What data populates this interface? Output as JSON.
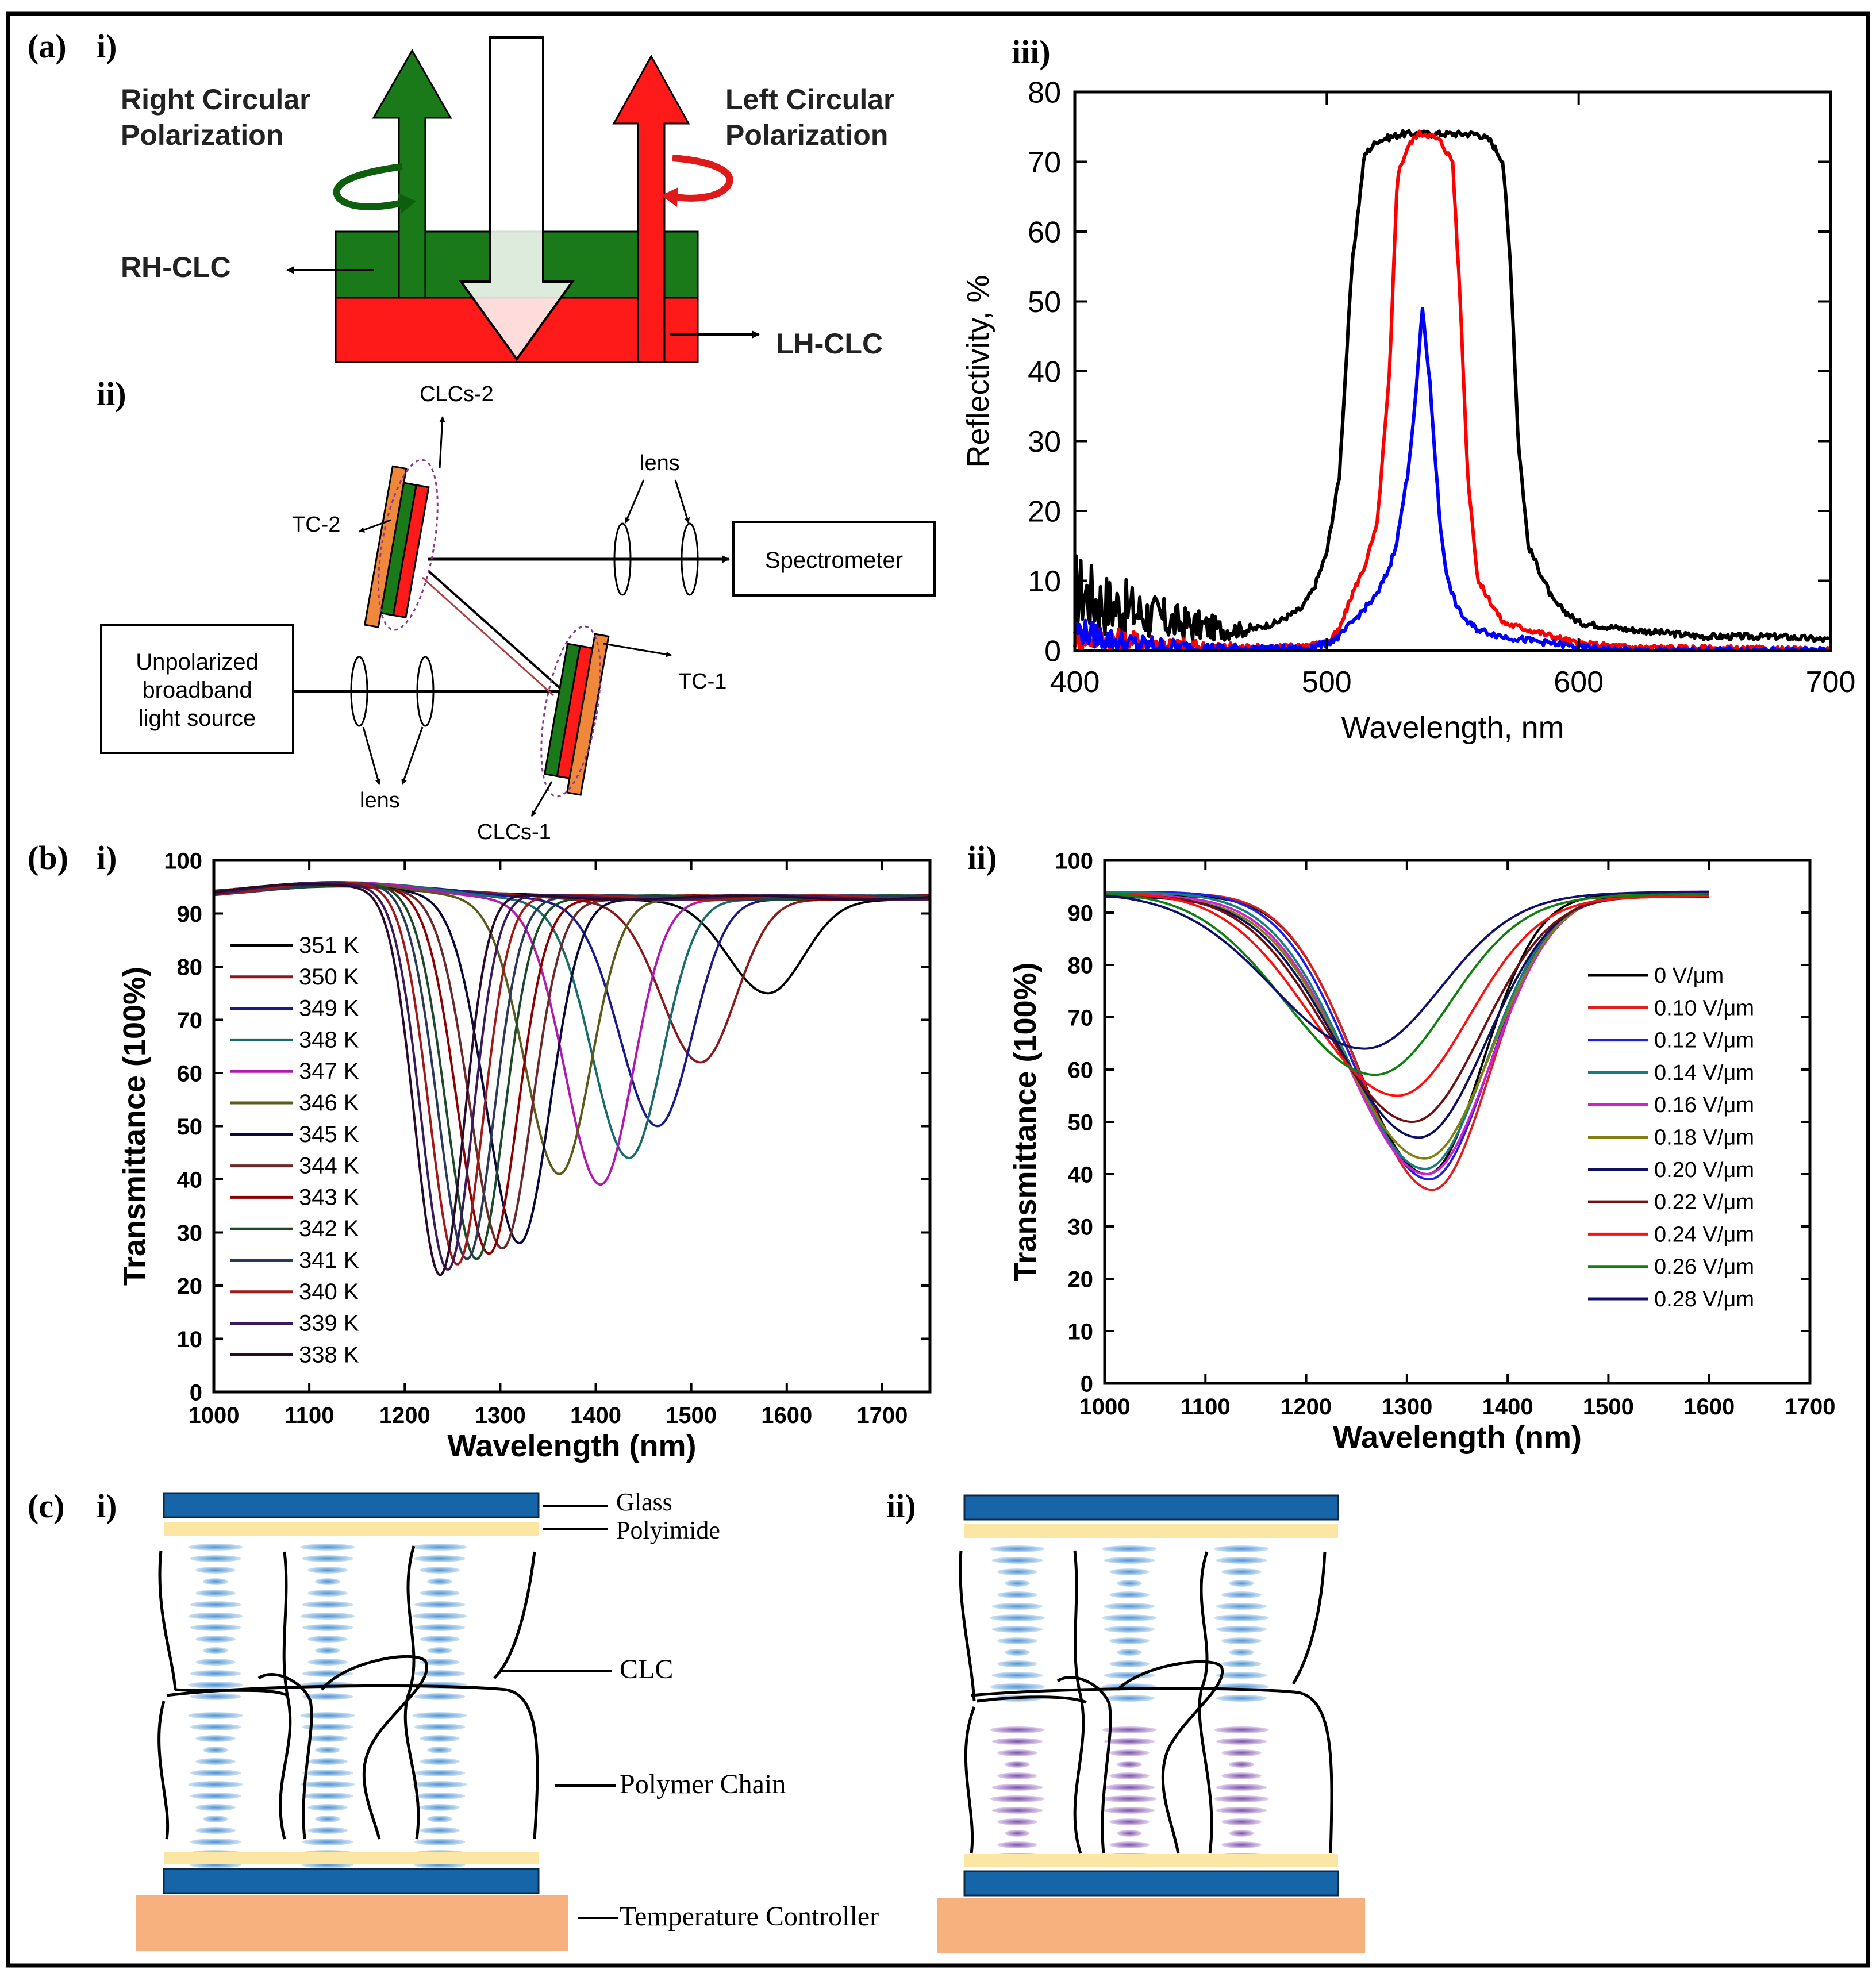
{
  "panels": {
    "a_label": "(a)",
    "a_i": "i)",
    "a_ii": "ii)",
    "a_iii": "iii)",
    "b_label": "(b)",
    "b_i": "i)",
    "b_ii": "ii)",
    "c_label": "(c)",
    "c_i": "i)",
    "c_ii": "ii)"
  },
  "diagram_a_i": {
    "right_circular": [
      "Right Circular",
      "Polarization"
    ],
    "left_circular": [
      "Left Circular",
      "Polarization"
    ],
    "rh_clc": "RH-CLC",
    "lh_clc": "LH-CLC",
    "colors": {
      "green": "#1a7a1a",
      "red": "#ff1a1a",
      "green_dark": "#0d5e0d"
    }
  },
  "diagram_a_ii": {
    "clcs2": "CLCs-2",
    "tc2": "TC-2",
    "lens_top": "lens",
    "spectrometer": "Spectrometer",
    "source": [
      "Unpolarized",
      "broadband",
      "light source"
    ],
    "tc1": "TC-1",
    "lens_bottom": "lens",
    "clcs1": "CLCs-1"
  },
  "chart_data": [
    {
      "id": "a_iii",
      "type": "line",
      "xlabel": "Wavelength, nm",
      "ylabel": "Reflectivity, %",
      "xlim": [
        400,
        700
      ],
      "ylim": [
        0,
        80
      ],
      "xticks": [
        400,
        500,
        600,
        700
      ],
      "yticks": [
        0,
        10,
        20,
        30,
        40,
        50,
        60,
        70,
        80
      ],
      "series": [
        {
          "color": "#000000",
          "noise": true,
          "x": [
            400,
            410,
            420,
            430,
            440,
            450,
            460,
            470,
            480,
            490,
            495,
            500,
            505,
            510,
            515,
            520,
            530,
            540,
            550,
            560,
            565,
            570,
            573,
            576,
            580,
            590,
            600,
            620,
            650,
            680,
            700
          ],
          "y": [
            9,
            7,
            6,
            5,
            4,
            3.5,
            3,
            3,
            4,
            6,
            9,
            14,
            25,
            55,
            71,
            73,
            74,
            74,
            74,
            74,
            73,
            70,
            55,
            30,
            15,
            7,
            4,
            3,
            2,
            2,
            1.5
          ]
        },
        {
          "color": "#ff0000",
          "noise": true,
          "x": [
            400,
            420,
            450,
            480,
            500,
            505,
            510,
            515,
            520,
            525,
            528,
            532,
            536,
            540,
            545,
            550,
            553,
            556,
            560,
            565,
            570,
            580,
            590,
            600,
            620,
            700
          ],
          "y": [
            2,
            1.5,
            0.5,
            0.5,
            1,
            3,
            8,
            12,
            18,
            40,
            68,
            72,
            74,
            74,
            73,
            70,
            50,
            25,
            10,
            7,
            4,
            3,
            2,
            1,
            0.5,
            0
          ]
        },
        {
          "color": "#0000ff",
          "noise": true,
          "x": [
            400,
            420,
            450,
            490,
            500,
            505,
            510,
            515,
            520,
            525,
            528,
            532,
            535,
            538,
            541,
            545,
            548,
            552,
            556,
            560,
            565,
            570,
            580,
            590,
            600,
            620,
            700
          ],
          "y": [
            3,
            1,
            0.3,
            0.3,
            1,
            2,
            4,
            6,
            8,
            12,
            16,
            25,
            35,
            49,
            38,
            18,
            10,
            6,
            4,
            3,
            2.5,
            2,
            1.5,
            1,
            0.5,
            0,
            0
          ]
        }
      ]
    },
    {
      "id": "b_i",
      "type": "line",
      "xlabel": "Wavelength (nm)",
      "ylabel": "Transmittance (100%)",
      "xlim": [
        1000,
        1750
      ],
      "ylim": [
        0,
        100
      ],
      "xticks": [
        1000,
        1100,
        1200,
        1300,
        1400,
        1500,
        1600,
        1700
      ],
      "yticks": [
        0,
        10,
        20,
        30,
        40,
        50,
        60,
        70,
        80,
        90,
        100
      ],
      "series": [
        {
          "name": "351 K",
          "color": "#000000",
          "dip": 1580,
          "min": 75
        },
        {
          "name": "350 K",
          "color": "#8b1a1a",
          "dip": 1510,
          "min": 62
        },
        {
          "name": "349 K",
          "color": "#1a1a8b",
          "dip": 1465,
          "min": 50
        },
        {
          "name": "348 K",
          "color": "#1a6b6b",
          "dip": 1435,
          "min": 44
        },
        {
          "name": "347 K",
          "color": "#b01ab0",
          "dip": 1405,
          "min": 39
        },
        {
          "name": "346 K",
          "color": "#5a5a1a",
          "dip": 1362,
          "min": 41
        },
        {
          "name": "345 K",
          "color": "#0a0a3a",
          "dip": 1320,
          "min": 28
        },
        {
          "name": "344 K",
          "color": "#6b2a2a",
          "dip": 1302,
          "min": 27
        },
        {
          "name": "343 K",
          "color": "#8b0000",
          "dip": 1288,
          "min": 26
        },
        {
          "name": "342 K",
          "color": "#1a4a2a",
          "dip": 1275,
          "min": 25
        },
        {
          "name": "341 K",
          "color": "#2a3a5a",
          "dip": 1265,
          "min": 25
        },
        {
          "name": "340 K",
          "color": "#a01a1a",
          "dip": 1255,
          "min": 24
        },
        {
          "name": "339 K",
          "color": "#3a1a5a",
          "dip": 1245,
          "min": 23
        },
        {
          "name": "338 K",
          "color": "#2a0a2a",
          "dip": 1237,
          "min": 22
        }
      ]
    },
    {
      "id": "b_ii",
      "type": "line",
      "xlabel": "Wavelength (nm)",
      "ylabel": "Transmittance (100%)",
      "xlim": [
        1000,
        1700
      ],
      "ylim": [
        0,
        100
      ],
      "xticks": [
        1000,
        1100,
        1200,
        1300,
        1400,
        1500,
        1600,
        1700
      ],
      "yticks": [
        0,
        10,
        20,
        30,
        40,
        50,
        60,
        70,
        80,
        90,
        100
      ],
      "series": [
        {
          "name": "0 V/μm",
          "color": "#000000",
          "dip": 1320,
          "min": 40
        },
        {
          "name": "0.10 V/μm",
          "color": "#e02020",
          "dip": 1325,
          "min": 37
        },
        {
          "name": "0.12 V/μm",
          "color": "#2020e0",
          "dip": 1322,
          "min": 39
        },
        {
          "name": "0.14 V/μm",
          "color": "#108080",
          "dip": 1318,
          "min": 41
        },
        {
          "name": "0.16 V/μm",
          "color": "#d020d0",
          "dip": 1320,
          "min": 40
        },
        {
          "name": "0.18 V/μm",
          "color": "#808010",
          "dip": 1318,
          "min": 43
        },
        {
          "name": "0.20 V/μm",
          "color": "#101060",
          "dip": 1312,
          "min": 47
        },
        {
          "name": "0.22 V/μm",
          "color": "#701010",
          "dip": 1305,
          "min": 50
        },
        {
          "name": "0.24 V/μm",
          "color": "#ff1010",
          "dip": 1290,
          "min": 55
        },
        {
          "name": "0.26 V/μm",
          "color": "#108010",
          "dip": 1268,
          "min": 59
        },
        {
          "name": "0.28 V/μm",
          "color": "#101070",
          "dip": 1258,
          "min": 64
        }
      ]
    }
  ],
  "diagram_c": {
    "glass": "Glass",
    "polyimide": "Polyimide",
    "clc": "CLC",
    "polymer_chain": "Polymer Chain",
    "temperature_controller": "Temperature Controller",
    "colors": {
      "glass": "#1565a8",
      "polyimide": "#fbe7a3",
      "controller": "#f7b17e",
      "lc_blue": "#5fa3dc",
      "lc_purple": "#8a5fb3"
    }
  }
}
